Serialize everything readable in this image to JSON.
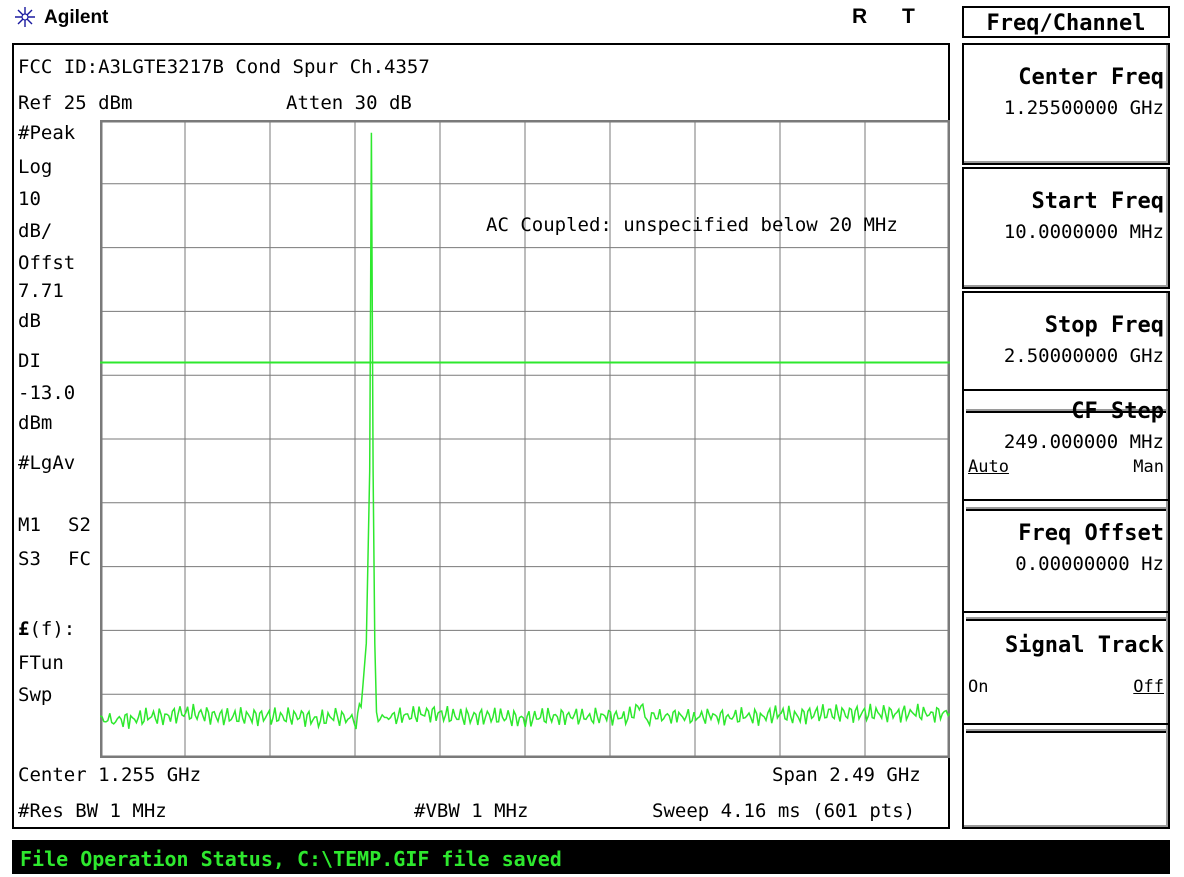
{
  "top_bar": {
    "brand": "Agilent",
    "logo_icon": "agilent-spark-icon",
    "indicator_r": "R",
    "indicator_t": "T"
  },
  "display": {
    "title": "FCC ID:A3LGTE3217B Cond Spur Ch.4357",
    "ref_level": "Ref 25 dBm",
    "atten": "Atten 30 dB",
    "annotation": "AC Coupled: unspecified below 20 MHz",
    "left_labels": {
      "peak": "#Peak",
      "log": "Log",
      "scale_value": "10",
      "scale_unit": "dB/",
      "offset": "Offst",
      "offset_value": "7.71",
      "offset_unit": "dB",
      "dl": "DI",
      "dl_value": "-13.0",
      "dl_unit": "dBm",
      "avg": "#LgAv",
      "m1": "M1",
      "s2": "S2",
      "s3": "S3",
      "fc": "FC",
      "lf_symbol": "£",
      "lf_rest": "(f):",
      "ftun": "FTun",
      "swp": "Swp"
    },
    "center": "Center 1.255 GHz",
    "span": "Span 2.49 GHz",
    "res_bw": "#Res BW 1 MHz",
    "vbw": "#VBW 1 MHz",
    "sweep": "Sweep 4.16 ms (601 pts)"
  },
  "menu": {
    "title": "Freq/Channel",
    "softkeys": [
      {
        "label": "Center Freq",
        "value": "1.25500000 GHz"
      },
      {
        "label": "Start Freq",
        "value": "10.0000000 MHz"
      },
      {
        "label": "Stop Freq",
        "value": "2.50000000 GHz"
      },
      {
        "label": "CF Step",
        "value": "249.000000 MHz",
        "left": "Auto",
        "right": "Man"
      },
      {
        "label": "Freq Offset",
        "value": "0.00000000  Hz"
      },
      {
        "label": "Signal Track",
        "left": "On",
        "right": "Off"
      },
      {
        "label": ""
      }
    ]
  },
  "status": {
    "text": "File Operation Status, C:\\TEMP.GIF file saved"
  },
  "colors": {
    "trace": "#2ee82e",
    "grid": "#7a7a7a",
    "status_text": "#2ee82e",
    "status_bg": "#000000"
  },
  "chart_data": {
    "type": "line",
    "x_unit": "GHz",
    "y_unit": "dBm",
    "xlim": [
      0.01,
      2.5
    ],
    "ylim": [
      -75,
      25
    ],
    "grid": true,
    "display_line": -13.0,
    "series": [
      {
        "x": [
          0.01,
          0.05,
          0.1,
          0.15,
          0.2,
          0.25,
          0.3,
          0.35,
          0.4,
          0.45,
          0.5,
          0.55,
          0.6,
          0.65,
          0.7,
          0.76,
          0.775,
          0.79,
          0.8,
          0.805,
          0.81,
          0.815,
          0.82,
          0.83,
          0.85,
          0.9,
          0.95,
          1.0,
          1.05,
          1.1,
          1.15,
          1.2,
          1.25,
          1.3,
          1.35,
          1.4,
          1.45,
          1.5,
          1.55,
          1.58,
          1.59,
          1.6,
          1.62,
          1.65,
          1.7,
          1.75,
          1.8,
          1.85,
          1.9,
          1.95,
          2.0,
          2.05,
          2.1,
          2.15,
          2.2,
          2.25,
          2.3,
          2.35,
          2.4,
          2.45,
          2.5
        ],
        "y": [
          -69,
          -69,
          -69,
          -68.5,
          -68.5,
          -68,
          -68,
          -68.5,
          -68.5,
          -68.5,
          -68.5,
          -68.5,
          -68.5,
          -69,
          -68.5,
          -69,
          -67,
          -57,
          -30,
          23,
          -30,
          -57,
          -68,
          -69,
          -68.5,
          -68.5,
          -68,
          -68,
          -68.5,
          -68.5,
          -68.5,
          -68.5,
          -69,
          -68.5,
          -68.5,
          -68.5,
          -68.5,
          -68.5,
          -68.5,
          -68,
          -66,
          -68,
          -68.5,
          -68.5,
          -68.5,
          -68.5,
          -68.5,
          -68.5,
          -68.5,
          -68.5,
          -68,
          -68.5,
          -68,
          -68,
          -68,
          -68,
          -68,
          -68,
          -68,
          -68,
          -68
        ]
      }
    ]
  }
}
